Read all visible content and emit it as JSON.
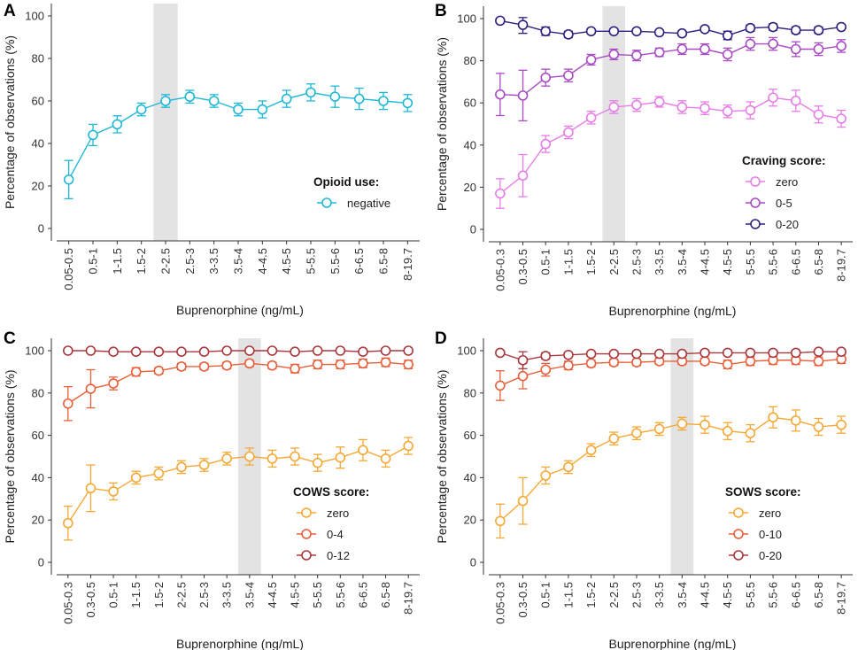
{
  "chart_data": [
    {
      "panel": "A",
      "type": "line",
      "xlabel": "Buprenorphine (ng/mL)",
      "ylabel": "Percentage of observations (%)",
      "ylim": [
        0,
        100
      ],
      "yticks": [
        0,
        20,
        40,
        60,
        80,
        100
      ],
      "categories": [
        "0.05-0.5",
        "0.5-1",
        "1-1.5",
        "1.5-2",
        "2-2.5",
        "2.5-3",
        "3-3.5",
        "3.5-4",
        "4-4.5",
        "4.5-5",
        "5-5.5",
        "5.5-6",
        "6-6.5",
        "6.5-8",
        "8-19.7"
      ],
      "highlight_category": "2-2.5",
      "legend_title": "Opioid use:",
      "series": [
        {
          "name": "negative",
          "color": "#1fb8d6",
          "values": [
            23,
            44,
            49,
            56,
            60,
            62,
            60,
            56,
            56,
            61,
            64,
            62,
            61,
            60,
            59
          ],
          "err": [
            9,
            5,
            4,
            3,
            3,
            3,
            3,
            3,
            4,
            4,
            4,
            5,
            5,
            4,
            4
          ]
        }
      ]
    },
    {
      "panel": "B",
      "type": "line",
      "xlabel": "Buprenorphine (ng/mL)",
      "ylabel": "Percentage of observations (%)",
      "ylim": [
        0,
        100
      ],
      "yticks": [
        0,
        20,
        40,
        60,
        80,
        100
      ],
      "categories": [
        "0.05-0.3",
        "0.3-0.5",
        "0.5-1",
        "1-1.5",
        "1.5-2",
        "2-2.5",
        "2.5-3",
        "3-3.5",
        "3.5-4",
        "4-4.5",
        "4.5-5",
        "5-5.5",
        "5.5-6",
        "6-6.5",
        "6.5-8",
        "8-19.7"
      ],
      "highlight_category": "2-2.5",
      "legend_title": "Craving score:",
      "series": [
        {
          "name": "zero",
          "color": "#e77de8",
          "values": [
            17,
            25.5,
            40.5,
            46,
            53,
            58,
            59,
            60.5,
            58,
            57.5,
            56,
            56.5,
            62.5,
            61,
            54.5,
            52.5
          ],
          "err": [
            7,
            10,
            4,
            3,
            3,
            3,
            3,
            2.5,
            3,
            3,
            3,
            4,
            4,
            5,
            4,
            4
          ]
        },
        {
          "name": "0-5",
          "color": "#a94bc4",
          "values": [
            64,
            63.5,
            72,
            73,
            80.5,
            83,
            82.5,
            84,
            85.5,
            85.5,
            83,
            88,
            88,
            85.5,
            85.5,
            87
          ],
          "err": [
            10,
            12,
            4,
            3,
            2.5,
            2.5,
            2.5,
            2,
            2.5,
            2.5,
            3,
            3,
            3,
            3.5,
            3,
            3
          ]
        },
        {
          "name": "0-20",
          "color": "#2d2080",
          "values": [
            99,
            97,
            94,
            92.5,
            94,
            94,
            94,
            93.5,
            93,
            95,
            92,
            95.5,
            96,
            94.5,
            94.5,
            96
          ],
          "err": [
            1,
            4,
            2,
            1.5,
            1,
            1,
            1,
            1,
            1,
            1,
            2,
            1.5,
            1.5,
            1.5,
            1.5,
            1
          ]
        }
      ]
    },
    {
      "panel": "C",
      "type": "line",
      "xlabel": "Buprenorphine (ng/mL)",
      "ylabel": "Percentage of observations (%)",
      "ylim": [
        0,
        100
      ],
      "yticks": [
        0,
        20,
        40,
        60,
        80,
        100
      ],
      "categories": [
        "0.05-0.3",
        "0.3-0.5",
        "0.5-1",
        "1-1.5",
        "1.5-2",
        "2-2.5",
        "2.5-3",
        "3-3.5",
        "3.5-4",
        "4-4.5",
        "4.5-5",
        "5-5.5",
        "5.5-6",
        "6-6.5",
        "6.5-8",
        "8-19.7"
      ],
      "highlight_category": "3.5-4",
      "legend_title": "COWS score:",
      "series": [
        {
          "name": "zero",
          "color": "#f5a836",
          "values": [
            18.5,
            35,
            33.5,
            40,
            42,
            45,
            46,
            49,
            50,
            49,
            50,
            47,
            49.5,
            53,
            49,
            55
          ],
          "err": [
            8,
            11,
            4,
            3,
            3,
            3,
            3,
            3,
            4,
            4,
            4,
            4,
            5,
            5,
            4,
            4
          ]
        },
        {
          "name": "0-4",
          "color": "#e8603a",
          "values": [
            75,
            82,
            84.5,
            90,
            90.5,
            92.5,
            92.5,
            93,
            94,
            93,
            91.5,
            93.5,
            93.5,
            94,
            94.5,
            93.5
          ],
          "err": [
            8,
            9,
            3,
            2,
            1.5,
            1.5,
            1.5,
            1.5,
            1.5,
            1.5,
            2,
            2,
            2,
            2,
            2,
            2
          ]
        },
        {
          "name": "0-12",
          "color": "#a8383d",
          "values": [
            100,
            100,
            99.5,
            99.5,
            99.5,
            99.5,
            99.5,
            100,
            100,
            100,
            99.5,
            100,
            100,
            99.5,
            100,
            100
          ],
          "err": [
            0.5,
            0.5,
            0.5,
            0.5,
            0.5,
            0.5,
            0.5,
            0.5,
            0.5,
            0.5,
            0.5,
            0.5,
            0.5,
            0.5,
            0.5,
            0.5
          ]
        }
      ]
    },
    {
      "panel": "D",
      "type": "line",
      "xlabel": "Buprenorphine (ng/mL)",
      "ylabel": "Percentage of observations (%)",
      "ylim": [
        0,
        100
      ],
      "yticks": [
        0,
        20,
        40,
        60,
        80,
        100
      ],
      "categories": [
        "0.05-0.3",
        "0.3-0.5",
        "0.5-1",
        "1-1.5",
        "1.5-2",
        "2-2.5",
        "2.5-3",
        "3-3.5",
        "3.5-4",
        "4-4.5",
        "4.5-5",
        "5-5.5",
        "5.5-6",
        "6-6.5",
        "6.5-8",
        "8-19.7"
      ],
      "highlight_category": "3.5-4",
      "legend_title": "SOWS score:",
      "series": [
        {
          "name": "zero",
          "color": "#f5a836",
          "values": [
            19.5,
            29,
            41,
            45,
            53,
            58.5,
            61,
            63,
            65.5,
            65,
            62,
            61,
            68.5,
            67,
            64,
            65
          ],
          "err": [
            8,
            11,
            4,
            3,
            3,
            3,
            3,
            3,
            3,
            4,
            4,
            4,
            5,
            5,
            4,
            4
          ]
        },
        {
          "name": "0-10",
          "color": "#e8603a",
          "values": [
            83.5,
            88,
            91,
            93,
            94,
            94.5,
            94.5,
            95,
            95,
            95,
            93.5,
            95,
            95.5,
            95.5,
            95,
            96
          ],
          "err": [
            7,
            6,
            3,
            2,
            1.5,
            1.5,
            1.5,
            1.5,
            1.5,
            1.5,
            2,
            2,
            2,
            2,
            2,
            2
          ]
        },
        {
          "name": "0-20",
          "color": "#a8383d",
          "values": [
            99,
            95.5,
            97.5,
            98,
            98.5,
            98.5,
            98.5,
            98.5,
            98.5,
            99,
            99,
            99,
            99,
            99,
            99.5,
            99.5
          ],
          "err": [
            1,
            4,
            1.5,
            1,
            1,
            1,
            1,
            1,
            1,
            1,
            1,
            1,
            1,
            1,
            1,
            1
          ]
        }
      ]
    }
  ]
}
